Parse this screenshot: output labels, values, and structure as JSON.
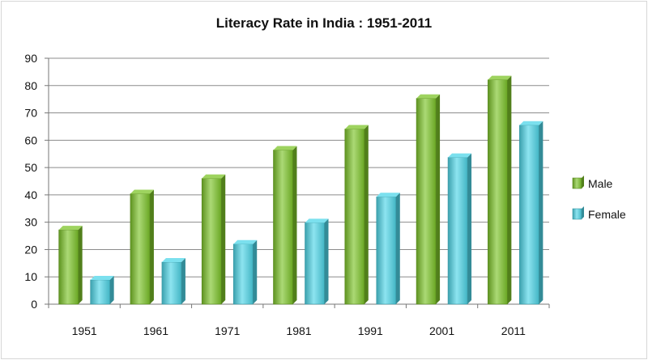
{
  "chart_data": {
    "type": "bar",
    "title": "Literacy Rate in India : 1951-2011",
    "xlabel": "",
    "ylabel": "",
    "categories": [
      "1951",
      "1961",
      "1971",
      "1981",
      "1991",
      "2001",
      "2011"
    ],
    "series": [
      {
        "name": "Male",
        "values": [
          27.2,
          40.4,
          46.0,
          56.4,
          64.1,
          75.3,
          82.1
        ],
        "color": "#7dc42a"
      },
      {
        "name": "Female",
        "values": [
          8.9,
          15.4,
          22.0,
          29.8,
          39.3,
          53.7,
          65.5
        ],
        "color": "#4fd6e8"
      }
    ],
    "ylim": [
      0,
      90
    ],
    "yticks": [
      0,
      10,
      20,
      30,
      40,
      50,
      60,
      70,
      80,
      90
    ],
    "grid": true,
    "legend": "right",
    "style": "3d-bar"
  }
}
